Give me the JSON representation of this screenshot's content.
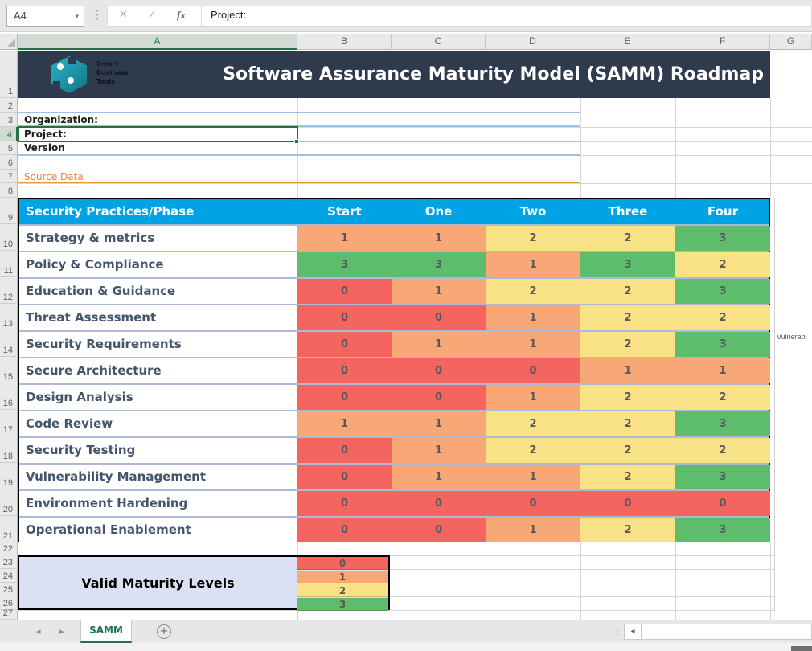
{
  "name_box": {
    "value": "A4"
  },
  "formula_bar": {
    "value": "Project:",
    "fx": "fx",
    "cancel": "✕",
    "confirm": "✓"
  },
  "column_headers": [
    "A",
    "B",
    "C",
    "D",
    "E",
    "F",
    "G"
  ],
  "row_numbers": [
    "1",
    "2",
    "3",
    "4",
    "5",
    "6",
    "7",
    "8",
    "9",
    "10",
    "11",
    "12",
    "13",
    "14",
    "15",
    "16",
    "17",
    "18",
    "19",
    "20",
    "21",
    "22",
    "23",
    "24",
    "25",
    "26",
    "27"
  ],
  "banner": {
    "title": "Software Assurance Maturity Model (SAMM) Roadmap",
    "logo_lines": [
      "Smart",
      "Business",
      "Tools"
    ]
  },
  "fields": {
    "organization_label": "Organization:",
    "project_label": "Project:",
    "version_label": "Version",
    "source_data_label": "Source Data"
  },
  "matrix": {
    "header": {
      "practice": "Security Practices/Phase",
      "phases": [
        "Start",
        "One",
        "Two",
        "Three",
        "Four"
      ]
    },
    "rows": [
      {
        "practice": "Strategy & metrics",
        "values": [
          1,
          1,
          2,
          2,
          3
        ]
      },
      {
        "practice": "Policy & Compliance",
        "values": [
          3,
          3,
          1,
          3,
          2
        ]
      },
      {
        "practice": "Education & Guidance",
        "values": [
          0,
          1,
          2,
          2,
          3
        ]
      },
      {
        "practice": "Threat Assessment",
        "values": [
          0,
          0,
          1,
          2,
          2
        ]
      },
      {
        "practice": "Security Requirements",
        "values": [
          0,
          1,
          1,
          2,
          3
        ]
      },
      {
        "practice": "Secure Architecture",
        "values": [
          0,
          0,
          0,
          1,
          1
        ]
      },
      {
        "practice": "Design Analysis",
        "values": [
          0,
          0,
          1,
          2,
          2
        ]
      },
      {
        "practice": "Code Review",
        "values": [
          1,
          1,
          2,
          2,
          3
        ]
      },
      {
        "practice": "Security Testing",
        "values": [
          0,
          1,
          2,
          2,
          2
        ]
      },
      {
        "practice": "Vulnerability Management",
        "values": [
          0,
          1,
          1,
          2,
          3
        ]
      },
      {
        "practice": "Environment Hardening",
        "values": [
          0,
          0,
          0,
          0,
          0
        ]
      },
      {
        "practice": "Operational Enablement",
        "values": [
          0,
          0,
          1,
          2,
          3
        ]
      }
    ]
  },
  "legend": {
    "title": "Valid Maturity Levels",
    "levels": [
      "0",
      "1",
      "2",
      "3"
    ]
  },
  "level_colors": {
    "0": "#f4655f",
    "1": "#f8a876",
    "2": "#f9e286",
    "3": "#5ebd6d"
  },
  "chart_note": "Vulnerabi",
  "tabs": {
    "active": "SAMM",
    "add": "+",
    "nav_left": "◂",
    "nav_right": "▸"
  },
  "scrollbar": {
    "left_arrow": "◂"
  }
}
